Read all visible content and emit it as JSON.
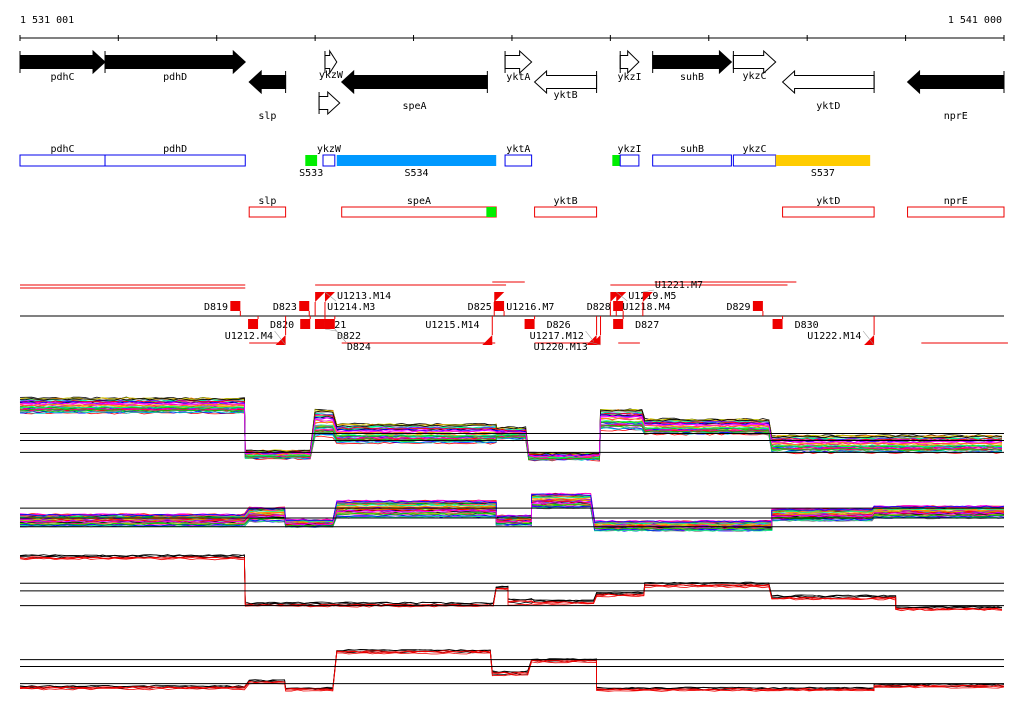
{
  "ruler": {
    "start_label": "1 531 001",
    "end_label": "1 541 000",
    "start_bp": 1531001,
    "end_bp": 1541000,
    "tick_step_bp": 1000
  },
  "genes": [
    {
      "name": "pdhC",
      "start": 1531001,
      "end": 1531865,
      "strand": "+",
      "filled": true,
      "row": 0
    },
    {
      "name": "pdhD",
      "start": 1531865,
      "end": 1533290,
      "strand": "+",
      "filled": true,
      "row": 0
    },
    {
      "name": "slp",
      "start": 1533330,
      "end": 1533700,
      "strand": "-",
      "filled": true,
      "row": 1
    },
    {
      "name": "ykzW",
      "start": 1534100,
      "end": 1534220,
      "strand": "+",
      "filled": false,
      "row": 0
    },
    {
      "name": "",
      "start": 1534040,
      "end": 1534250,
      "strand": "+",
      "filled": false,
      "row": 2
    },
    {
      "name": "speA",
      "start": 1534270,
      "end": 1535750,
      "strand": "-",
      "filled": true,
      "row": 1
    },
    {
      "name": "yktA",
      "start": 1535930,
      "end": 1536200,
      "strand": "+",
      "filled": false,
      "row": 0
    },
    {
      "name": "yktB",
      "start": 1536230,
      "end": 1536860,
      "strand": "-",
      "filled": false,
      "row": 1
    },
    {
      "name": "ykzI",
      "start": 1537100,
      "end": 1537290,
      "strand": "+",
      "filled": false,
      "row": 0
    },
    {
      "name": "suhB",
      "start": 1537430,
      "end": 1538230,
      "strand": "+",
      "filled": true,
      "row": 0
    },
    {
      "name": "ykzC",
      "start": 1538250,
      "end": 1538680,
      "strand": "+",
      "filled": false,
      "row": 0
    },
    {
      "name": "yktD",
      "start": 1538750,
      "end": 1539680,
      "strand": "-",
      "filled": false,
      "row": 1
    },
    {
      "name": "nprE",
      "start": 1540020,
      "end": 1541000,
      "strand": "-",
      "filled": true,
      "row": 1
    }
  ],
  "features_plus": [
    {
      "name": "pdhC",
      "start": 1531001,
      "end": 1531865,
      "type": "outline"
    },
    {
      "name": "pdhD",
      "start": 1531865,
      "end": 1533290,
      "type": "outline"
    },
    {
      "name": "S533",
      "start": 1533900,
      "end": 1534020,
      "type": "green",
      "label_below": true
    },
    {
      "name": "ykzW",
      "start": 1534080,
      "end": 1534200,
      "type": "outline"
    },
    {
      "name": "S534",
      "start": 1534220,
      "end": 1535840,
      "type": "blue",
      "label_below": true
    },
    {
      "name": "yktA",
      "start": 1535930,
      "end": 1536200,
      "type": "outline"
    },
    {
      "name": "",
      "start": 1537020,
      "end": 1537100,
      "type": "green"
    },
    {
      "name": "ykzI",
      "start": 1537100,
      "end": 1537290,
      "type": "outline"
    },
    {
      "name": "suhB",
      "start": 1537430,
      "end": 1538230,
      "type": "outline"
    },
    {
      "name": "ykzC",
      "start": 1538250,
      "end": 1538680,
      "type": "outline"
    },
    {
      "name": "S537",
      "start": 1538680,
      "end": 1539640,
      "type": "yellow",
      "label_below": true
    }
  ],
  "features_minus": [
    {
      "name": "slp",
      "start": 1533330,
      "end": 1533700
    },
    {
      "name": "speA",
      "start": 1534270,
      "end": 1535840,
      "green_end": 1535740
    },
    {
      "name": "yktB",
      "start": 1536230,
      "end": 1536860
    },
    {
      "name": "yktD",
      "start": 1538750,
      "end": 1539680
    },
    {
      "name": "nprE",
      "start": 1540020,
      "end": 1541000
    }
  ],
  "segment_lines": [
    {
      "start": 1531001,
      "end": 1533290,
      "row": -3
    },
    {
      "start": 1531001,
      "end": 1533290,
      "row": -2
    },
    {
      "start": 1534000,
      "end": 1535940,
      "row": -3
    },
    {
      "start": 1535800,
      "end": 1536130,
      "row": -4
    },
    {
      "start": 1537000,
      "end": 1538800,
      "row": -3
    },
    {
      "start": 1537450,
      "end": 1538890,
      "row": -4
    },
    {
      "start": 1533330,
      "end": 1533700,
      "row": 2
    },
    {
      "start": 1534270,
      "end": 1535830,
      "row": 2
    },
    {
      "start": 1536230,
      "end": 1536900,
      "row": 2
    },
    {
      "start": 1537080,
      "end": 1537300,
      "row": 2
    },
    {
      "start": 1540160,
      "end": 1541040,
      "row": 2
    }
  ],
  "markers": [
    {
      "label": "D819",
      "pos": 1533240,
      "side": "above",
      "kind": "square"
    },
    {
      "label": "D820",
      "pos": 1533420,
      "side": "below",
      "kind": "square"
    },
    {
      "label": "U1212.M4",
      "pos": 1533700,
      "side": "below",
      "kind": "triangle"
    },
    {
      "label": "D823",
      "pos": 1533940,
      "side": "above",
      "kind": "square"
    },
    {
      "label": "U1214.M3",
      "pos": 1534000,
      "side": "above",
      "kind": "triangle"
    },
    {
      "label": "U1213.M14",
      "pos": 1534100,
      "side": "above",
      "kind": "triangle"
    },
    {
      "label": "D821",
      "pos": 1533950,
      "side": "below",
      "kind": "square"
    },
    {
      "label": "D822",
      "pos": 1534100,
      "side": "below",
      "kind": "square"
    },
    {
      "label": "D824",
      "pos": 1534200,
      "side": "below",
      "kind": "square"
    },
    {
      "label": "U1215.M14",
      "pos": 1535800,
      "side": "below",
      "kind": "triangle"
    },
    {
      "label": "D825",
      "pos": 1535920,
      "side": "above",
      "kind": "square"
    },
    {
      "label": "U1216.M7",
      "pos": 1535820,
      "side": "above",
      "kind": "triangle"
    },
    {
      "label": "D826",
      "pos": 1536230,
      "side": "below",
      "kind": "square"
    },
    {
      "label": "U1217.M12",
      "pos": 1536860,
      "side": "below",
      "kind": "triangle"
    },
    {
      "label": "U1220.M13",
      "pos": 1536900,
      "side": "below",
      "kind": "triangle"
    },
    {
      "label": "D828",
      "pos": 1537130,
      "side": "above",
      "kind": "square"
    },
    {
      "label": "U1218.M4",
      "pos": 1537000,
      "side": "above",
      "kind": "triangle"
    },
    {
      "label": "U1219.M5",
      "pos": 1537060,
      "side": "above",
      "kind": "triangle"
    },
    {
      "label": "U1221.M7",
      "pos": 1537330,
      "side": "above",
      "kind": "triangle"
    },
    {
      "label": "D827",
      "pos": 1537130,
      "side": "below",
      "kind": "square"
    },
    {
      "label": "D829",
      "pos": 1538550,
      "side": "above",
      "kind": "square"
    },
    {
      "label": "D830",
      "pos": 1538750,
      "side": "below",
      "kind": "square"
    },
    {
      "label": "U1222.M14",
      "pos": 1539680,
      "side": "below",
      "kind": "triangle"
    }
  ],
  "tracks": [
    {
      "name": "multi-top",
      "style": "rainbow",
      "lines": 40,
      "refs": [
        45,
        35,
        18
      ],
      "segments": [
        [
          1531001,
          1533290,
          85,
          22
        ],
        [
          1533290,
          1534000,
          15,
          12
        ],
        [
          1534000,
          1534220,
          60,
          40
        ],
        [
          1534220,
          1535840,
          45,
          28
        ],
        [
          1535840,
          1536170,
          45,
          18
        ],
        [
          1536170,
          1536900,
          12,
          10
        ],
        [
          1536900,
          1537350,
          65,
          30
        ],
        [
          1537350,
          1538640,
          55,
          22
        ],
        [
          1538640,
          1541000,
          30,
          25
        ]
      ]
    },
    {
      "name": "multi-bottom",
      "style": "rainbow",
      "lines": 40,
      "refs": [
        58,
        40,
        24
      ],
      "segments": [
        [
          1531001,
          1533330,
          35,
          25
        ],
        [
          1533330,
          1533700,
          45,
          30
        ],
        [
          1533700,
          1534220,
          30,
          15
        ],
        [
          1534220,
          1535840,
          55,
          35
        ],
        [
          1535840,
          1536200,
          35,
          20
        ],
        [
          1536200,
          1536840,
          70,
          30
        ],
        [
          1536840,
          1538640,
          25,
          20
        ],
        [
          1538640,
          1539680,
          45,
          25
        ],
        [
          1539680,
          1541000,
          50,
          25
        ]
      ]
    },
    {
      "name": "profile-3",
      "style": "blackred",
      "lines": 6,
      "refs": [
        45,
        33,
        10
      ],
      "segments": [
        [
          1531001,
          1533290,
          88,
          4
        ],
        [
          1533290,
          1535840,
          14,
          4
        ],
        [
          1535840,
          1535960,
          40,
          4
        ],
        [
          1535960,
          1536230,
          20,
          12
        ],
        [
          1536230,
          1536860,
          18,
          4
        ],
        [
          1536860,
          1537350,
          30,
          4
        ],
        [
          1537350,
          1538640,
          45,
          6
        ],
        [
          1538640,
          1539900,
          25,
          4
        ],
        [
          1539900,
          1541000,
          8,
          3
        ]
      ]
    },
    {
      "name": "profile-4",
      "style": "blackred",
      "lines": 6,
      "refs": [
        62,
        50,
        20
      ],
      "segments": [
        [
          1531001,
          1533330,
          15,
          5
        ],
        [
          1533330,
          1533700,
          25,
          4
        ],
        [
          1533700,
          1534220,
          12,
          4
        ],
        [
          1534220,
          1535800,
          78,
          6
        ],
        [
          1535800,
          1536200,
          40,
          8
        ],
        [
          1536200,
          1536860,
          62,
          5
        ],
        [
          1536860,
          1539680,
          12,
          4
        ],
        [
          1539680,
          1541000,
          18,
          5
        ]
      ]
    }
  ],
  "colors": {
    "blue": "#0000ee",
    "red": "#ee0000",
    "green": "#00ee00",
    "feature_blue": "#0099ff",
    "feature_yellow": "#ffcc00"
  }
}
